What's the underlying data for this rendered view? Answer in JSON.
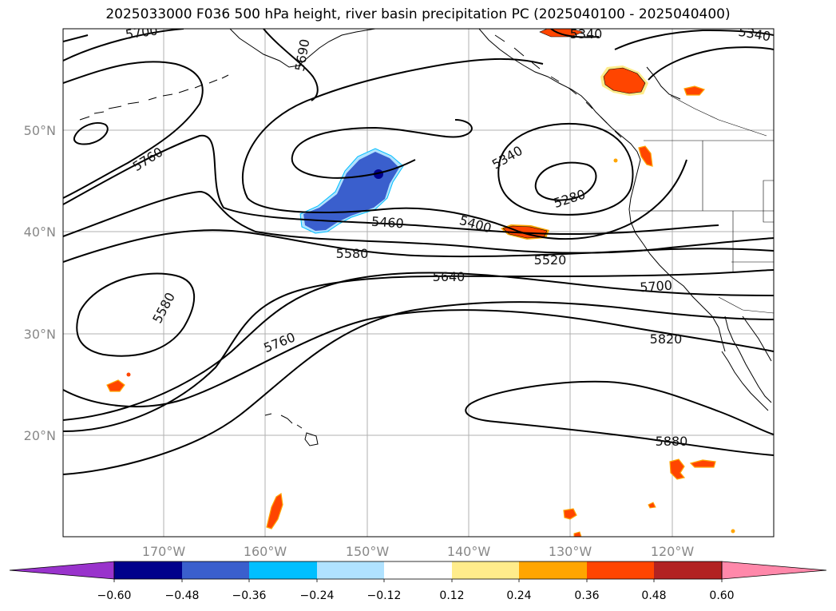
{
  "title": "2025033000 F036 500 hPa height, river basin precipitation PC (2025040100 - 2025040400)",
  "map": {
    "lat_labels": [
      "50°N",
      "40°N",
      "30°N",
      "20°N"
    ],
    "lon_labels": [
      "170°W",
      "160°W",
      "150°W",
      "140°W",
      "130°W",
      "120°W"
    ],
    "contour_labels": [
      "5700",
      "5760",
      "5580",
      "5760",
      "5460",
      "5580",
      "5640",
      "5400",
      "5340",
      "5280",
      "5520",
      "5700",
      "5820",
      "5880",
      "5340",
      "5340",
      "5690"
    ],
    "colors": {
      "coast": "#000000",
      "contour": "#000000",
      "grid": "#b0b0b0"
    }
  },
  "colorbar": {
    "tick_labels": [
      "−0.60",
      "−0.48",
      "−0.36",
      "−0.24",
      "−0.12",
      "0.12",
      "0.24",
      "0.36",
      "0.48",
      "0.60"
    ],
    "colors": [
      "#9933cc",
      "#00008b",
      "#3a5fcd",
      "#00bfff",
      "#b0e2ff",
      "#ffffff",
      "#ffec8b",
      "#ffa500",
      "#ff4500",
      "#b22222",
      "#ff88aa"
    ]
  }
}
